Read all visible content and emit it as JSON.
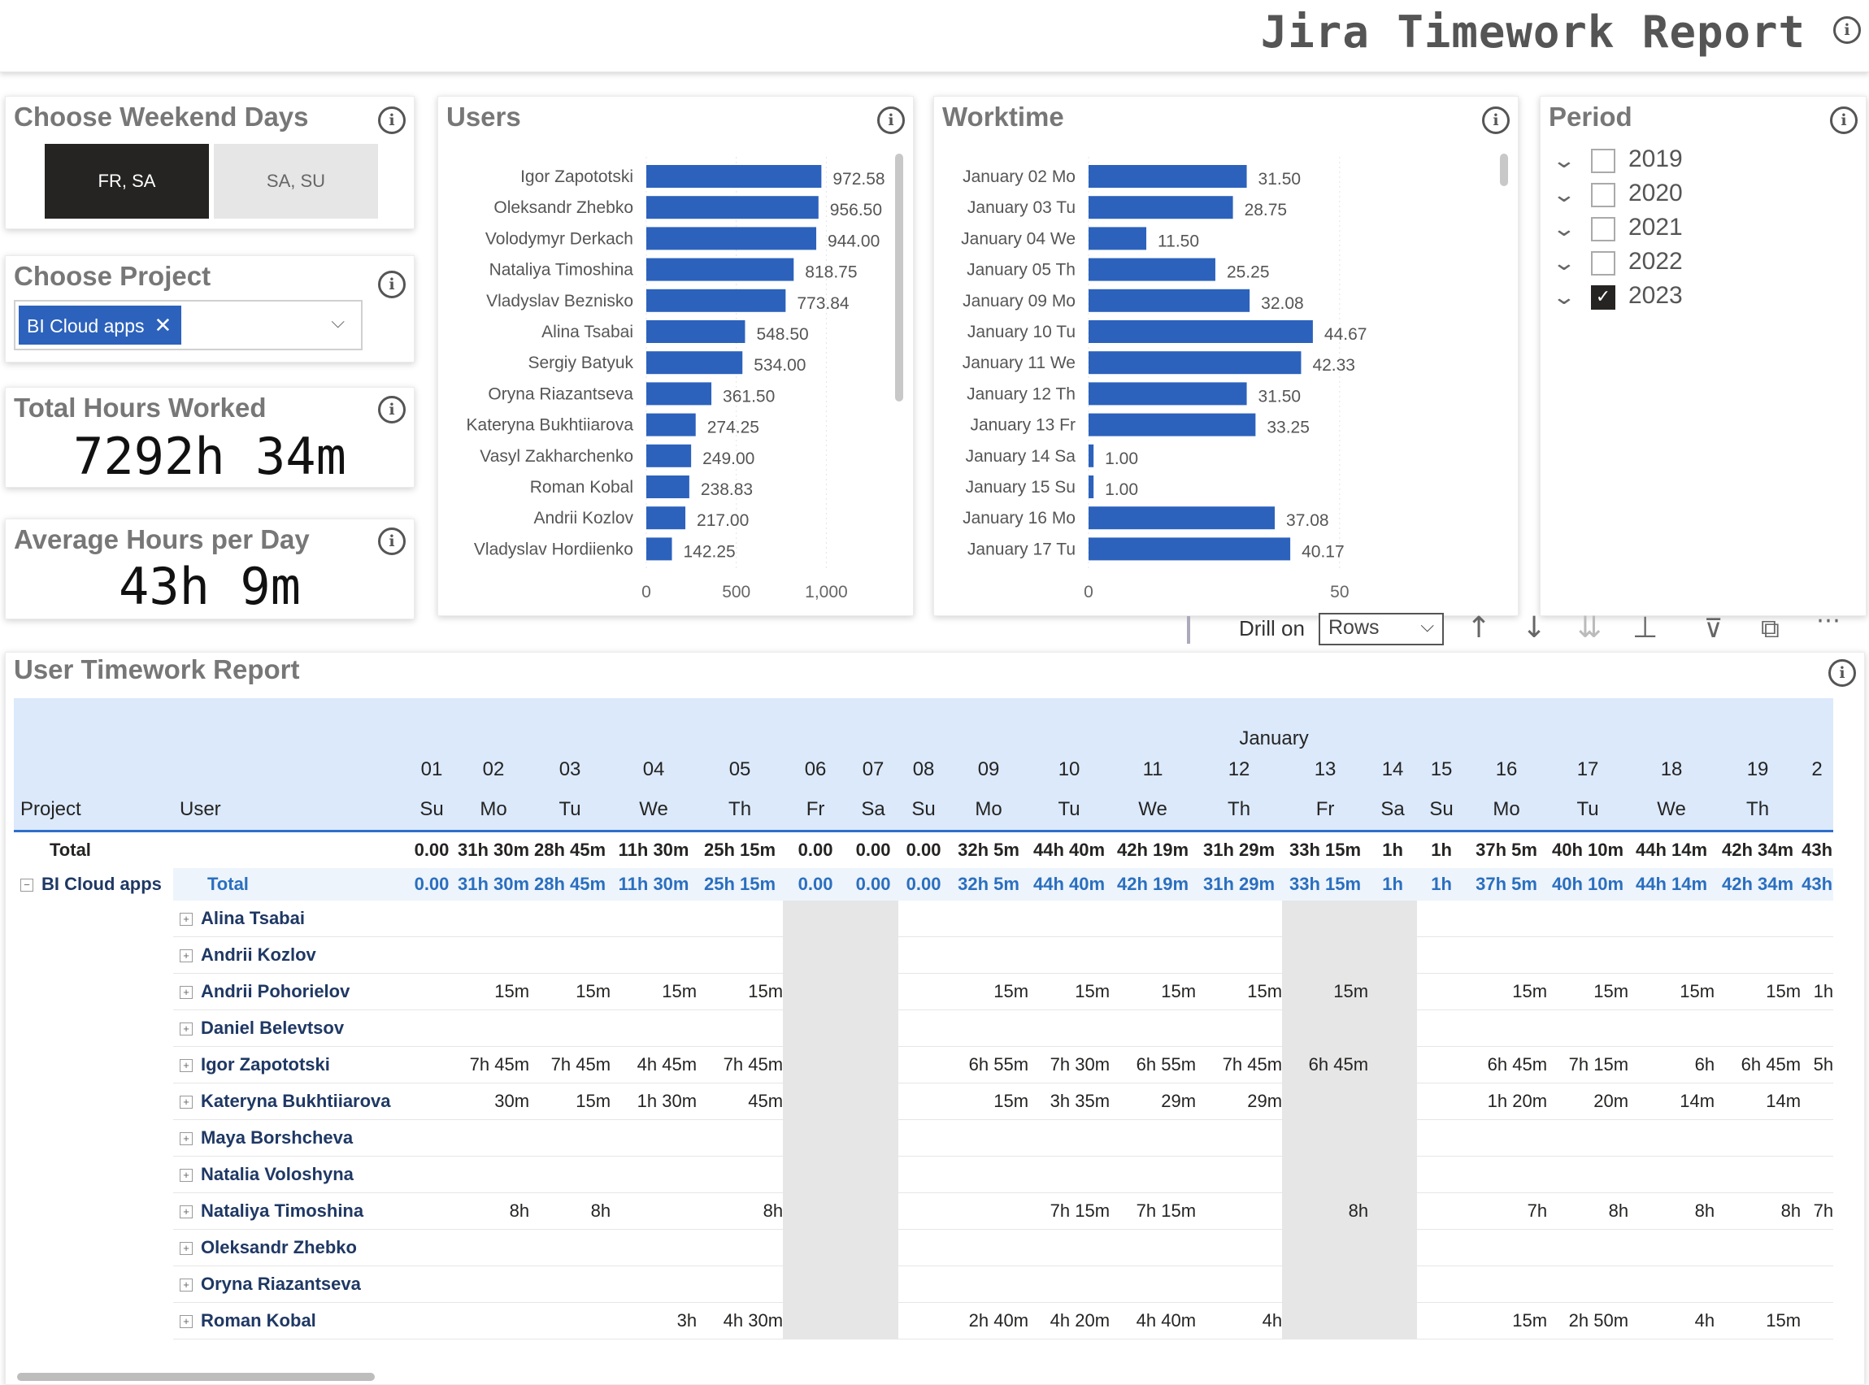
{
  "report": {
    "title": "Jira Timework Report"
  },
  "weekend": {
    "title": "Choose Weekend Days",
    "options": [
      "FR, SA",
      "SA, SU"
    ],
    "selected": "FR, SA"
  },
  "project": {
    "title": "Choose Project",
    "selected_chip": "BI Cloud apps"
  },
  "total_hours": {
    "title": "Total Hours Worked",
    "value": "7292h 34m"
  },
  "avg_hours": {
    "title": "Average Hours per Day",
    "value": "43h 9m"
  },
  "users_chart": {
    "title": "Users",
    "type": "bar",
    "categories": [
      "Igor Zapototski",
      "Oleksandr Zhebko",
      "Volodymyr Derkach",
      "Nataliya Timoshina",
      "Vladyslav Beznisko",
      "Alina Tsabai",
      "Sergiy Batyuk",
      "Oryna Riazantseva",
      "Kateryna Bukhtiiarova",
      "Vasyl Zakharchenko",
      "Roman Kobal",
      "Andrii Kozlov",
      "Vladyslav Hordiienko"
    ],
    "values": [
      972.58,
      956.5,
      944.0,
      818.75,
      773.84,
      548.5,
      534.0,
      361.5,
      274.25,
      249.0,
      238.83,
      217.0,
      142.25
    ],
    "labels": [
      "972.58",
      "956.50",
      "944.00",
      "818.75",
      "773.84",
      "548.50",
      "534.00",
      "361.50",
      "274.25",
      "249.00",
      "238.83",
      "217.00",
      "142.25"
    ],
    "ticks": [
      "0",
      "500",
      "1,000"
    ],
    "xlim": [
      0,
      1400
    ],
    "color": "#2c62bc"
  },
  "worktime_chart": {
    "title": "Worktime",
    "type": "bar",
    "categories": [
      "January 02 Mo",
      "January 03 Tu",
      "January 04 We",
      "January 05 Th",
      "January 09 Mo",
      "January 10 Tu",
      "January 11 We",
      "January 12 Th",
      "January 13 Fr",
      "January 14 Sa",
      "January 15 Su",
      "January 16 Mo",
      "January 17 Tu"
    ],
    "values": [
      31.5,
      28.75,
      11.5,
      25.25,
      32.08,
      44.67,
      42.33,
      31.5,
      33.25,
      1.0,
      1.0,
      37.08,
      40.17
    ],
    "labels": [
      "31.50",
      "28.75",
      "11.50",
      "25.25",
      "32.08",
      "44.67",
      "42.33",
      "31.50",
      "33.25",
      "1.00",
      "1.00",
      "37.08",
      "40.17"
    ],
    "ticks": [
      "0",
      "50"
    ],
    "xlim": [
      0,
      68
    ],
    "color": "#2c62bc"
  },
  "period": {
    "title": "Period",
    "years": [
      {
        "label": "2019",
        "checked": false
      },
      {
        "label": "2020",
        "checked": false
      },
      {
        "label": "2021",
        "checked": false
      },
      {
        "label": "2022",
        "checked": false
      },
      {
        "label": "2023",
        "checked": true
      }
    ]
  },
  "toolbar": {
    "drill_label": "Drill on",
    "drill_value": "Rows"
  },
  "matrix": {
    "title": "User Timework Report",
    "month": "January",
    "col_project": "Project",
    "col_user": "User",
    "days": [
      {
        "d": "01",
        "w": "Su"
      },
      {
        "d": "02",
        "w": "Mo"
      },
      {
        "d": "03",
        "w": "Tu"
      },
      {
        "d": "04",
        "w": "We"
      },
      {
        "d": "05",
        "w": "Th"
      },
      {
        "d": "06",
        "w": "Fr"
      },
      {
        "d": "07",
        "w": "Sa"
      },
      {
        "d": "08",
        "w": "Su"
      },
      {
        "d": "09",
        "w": "Mo"
      },
      {
        "d": "10",
        "w": "Tu"
      },
      {
        "d": "11",
        "w": "We"
      },
      {
        "d": "12",
        "w": "Th"
      },
      {
        "d": "13",
        "w": "Fr"
      },
      {
        "d": "14",
        "w": "Sa"
      },
      {
        "d": "15",
        "w": "Su"
      },
      {
        "d": "16",
        "w": "Mo"
      },
      {
        "d": "17",
        "w": "Tu"
      },
      {
        "d": "18",
        "w": "We"
      },
      {
        "d": "19",
        "w": "Th"
      },
      {
        "d": "2",
        "w": ""
      }
    ],
    "grand_total_label": "Total",
    "grand_totals": [
      "0.00",
      "31h 30m",
      "28h 45m",
      "11h 30m",
      "25h 15m",
      "0.00",
      "0.00",
      "0.00",
      "32h 5m",
      "44h 40m",
      "42h 19m",
      "31h 29m",
      "33h 15m",
      "1h",
      "1h",
      "37h 5m",
      "40h 10m",
      "44h 14m",
      "42h 34m",
      "43h"
    ],
    "project_name": "BI Cloud apps",
    "project_total_label": "Total",
    "project_totals": [
      "0.00",
      "31h 30m",
      "28h 45m",
      "11h 30m",
      "25h 15m",
      "0.00",
      "0.00",
      "0.00",
      "32h 5m",
      "44h 40m",
      "42h 19m",
      "31h 29m",
      "33h 15m",
      "1h",
      "1h",
      "37h 5m",
      "40h 10m",
      "44h 14m",
      "42h 34m",
      "43h"
    ],
    "rows": [
      {
        "user": "Alina Tsabai",
        "cells": [
          "",
          "",
          "",
          "",
          "",
          "",
          "",
          "",
          "",
          "",
          "",
          "",
          "",
          "",
          "",
          "",
          "",
          "",
          "",
          ""
        ]
      },
      {
        "user": "Andrii Kozlov",
        "cells": [
          "",
          "",
          "",
          "",
          "",
          "",
          "",
          "",
          "",
          "",
          "",
          "",
          "",
          "",
          "",
          "",
          "",
          "",
          "",
          ""
        ]
      },
      {
        "user": "Andrii Pohorielov",
        "cells": [
          "",
          "15m",
          "15m",
          "15m",
          "15m",
          "",
          "",
          "",
          "15m",
          "15m",
          "15m",
          "15m",
          "15m",
          "",
          "",
          "15m",
          "15m",
          "15m",
          "15m",
          "1h"
        ]
      },
      {
        "user": "Daniel Belevtsov",
        "cells": [
          "",
          "",
          "",
          "",
          "",
          "",
          "",
          "",
          "",
          "",
          "",
          "",
          "",
          "",
          "",
          "",
          "",
          "",
          "",
          ""
        ]
      },
      {
        "user": "Igor Zapototski",
        "cells": [
          "",
          "7h 45m",
          "7h 45m",
          "4h 45m",
          "7h 45m",
          "",
          "",
          "",
          "6h 55m",
          "7h 30m",
          "6h 55m",
          "7h 45m",
          "6h 45m",
          "",
          "",
          "6h 45m",
          "7h 15m",
          "6h",
          "6h 45m",
          "5h"
        ]
      },
      {
        "user": "Kateryna Bukhtiiarova",
        "cells": [
          "",
          "30m",
          "15m",
          "1h 30m",
          "45m",
          "",
          "",
          "",
          "15m",
          "3h 35m",
          "29m",
          "29m",
          "",
          "",
          "",
          "1h 20m",
          "20m",
          "14m",
          "14m",
          ""
        ]
      },
      {
        "user": "Maya Borshcheva",
        "cells": [
          "",
          "",
          "",
          "",
          "",
          "",
          "",
          "",
          "",
          "",
          "",
          "",
          "",
          "",
          "",
          "",
          "",
          "",
          "",
          ""
        ]
      },
      {
        "user": "Natalia Voloshyna",
        "cells": [
          "",
          "",
          "",
          "",
          "",
          "",
          "",
          "",
          "",
          "",
          "",
          "",
          "",
          "",
          "",
          "",
          "",
          "",
          "",
          ""
        ]
      },
      {
        "user": "Nataliya Timoshina",
        "cells": [
          "",
          "8h",
          "8h",
          "",
          "8h",
          "",
          "",
          "",
          "",
          "7h 15m",
          "7h 15m",
          "",
          "8h",
          "",
          "",
          "7h",
          "8h",
          "8h",
          "8h",
          "7h"
        ]
      },
      {
        "user": "Oleksandr Zhebko",
        "cells": [
          "",
          "",
          "",
          "",
          "",
          "",
          "",
          "",
          "",
          "",
          "",
          "",
          "",
          "",
          "",
          "",
          "",
          "",
          "",
          ""
        ]
      },
      {
        "user": "Oryna Riazantseva",
        "cells": [
          "",
          "",
          "",
          "",
          "",
          "",
          "",
          "",
          "",
          "",
          "",
          "",
          "",
          "",
          "",
          "",
          "",
          "",
          "",
          ""
        ]
      },
      {
        "user": "Roman Kobal",
        "cells": [
          "",
          "",
          "",
          "3h",
          "4h 30m",
          "",
          "",
          "",
          "2h 40m",
          "4h 20m",
          "4h 40m",
          "4h",
          "",
          "",
          "",
          "15m",
          "2h 50m",
          "4h",
          "15m",
          ""
        ]
      }
    ]
  }
}
